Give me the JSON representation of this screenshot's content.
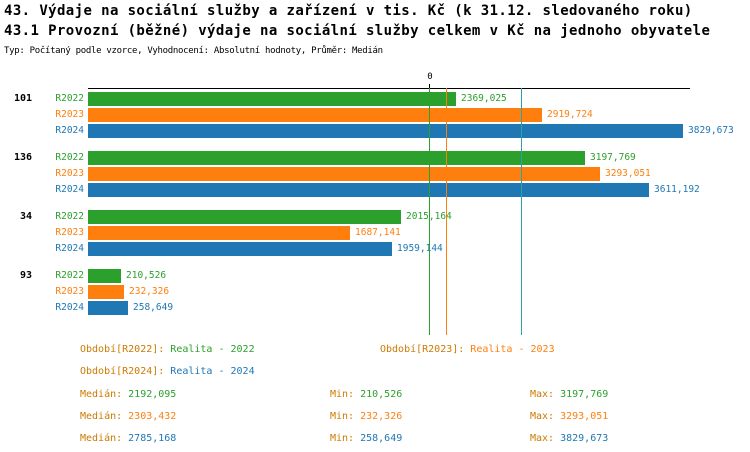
{
  "header": {
    "title1": "43. Výdaje na sociální služby a zařízení v tis. Kč (k 31.12. sledovaného roku)",
    "title2": "43.1 Provozní (běžné) výdaje na sociální služby celkem v Kč na jednoho obyvatele",
    "subtitle": "Typ: Počítaný podle vzorce, Vyhodnocení: Absolutní hodnoty, Průměr: Medián"
  },
  "chart_data": {
    "type": "bar",
    "orientation": "horizontal",
    "title": "43.1 Provozní (běžné) výdaje na sociální služby celkem v Kč na jednoho obyvatele",
    "axis": {
      "zero_label": "0",
      "x_min": 0,
      "x_max": 3875,
      "grid": false
    },
    "series": [
      {
        "name": "R2022",
        "label": "Realita - 2022",
        "color": "#2ca02c"
      },
      {
        "name": "R2023",
        "label": "Realita - 2023",
        "color": "#ff7f0e"
      },
      {
        "name": "R2024",
        "label": "Realita - 2024",
        "color": "#1f77b4"
      }
    ],
    "groups": [
      {
        "id": "101",
        "values": [
          2369.025,
          2919.724,
          3829.673
        ],
        "value_labels": [
          "2369,025",
          "2919,724",
          "3829,673"
        ]
      },
      {
        "id": "136",
        "values": [
          3197.769,
          3293.051,
          3611.192
        ],
        "value_labels": [
          "3197,769",
          "3293,051",
          "3611,192"
        ]
      },
      {
        "id": "34",
        "values": [
          2015.164,
          1687.141,
          1959.144
        ],
        "value_labels": [
          "2015,164",
          "1687,141",
          "1959,144"
        ]
      },
      {
        "id": "93",
        "values": [
          210.526,
          232.326,
          258.649
        ],
        "value_labels": [
          "210,526",
          "232,326",
          "258,649"
        ]
      }
    ],
    "median_lines": [
      {
        "series": "R2022",
        "value": 2192.095,
        "color": "#2ca02c"
      },
      {
        "series": "R2023",
        "value": 2303.432,
        "color": "#ff7f0e"
      },
      {
        "series": "R2024",
        "value": 2785.168,
        "color": "#2fa0a8"
      }
    ]
  },
  "legend": {
    "label_color": "#cc7a00",
    "items": [
      {
        "label": "Období[R2022]:",
        "value": "Realita - 2022",
        "color": "#2ca02c"
      },
      {
        "label": "Období[R2023]:",
        "value": "Realita - 2023",
        "color": "#ff7f0e"
      },
      {
        "label": "Období[R2024]:",
        "value": "Realita - 2024",
        "color": "#1f77b4"
      }
    ]
  },
  "stats": {
    "label_color": "#cc7a00",
    "rows": [
      {
        "median_label": "Medián:",
        "median": "2192,095",
        "min_label": "Min:",
        "min": "210,526",
        "max_label": "Max:",
        "max": "3197,769",
        "color": "#2ca02c"
      },
      {
        "median_label": "Medián:",
        "median": "2303,432",
        "min_label": "Min:",
        "min": "232,326",
        "max_label": "Max:",
        "max": "3293,051",
        "color": "#ff7f0e"
      },
      {
        "median_label": "Medián:",
        "median": "2785,168",
        "min_label": "Min:",
        "min": "258,649",
        "max_label": "Max:",
        "max": "3829,673",
        "color": "#1f77b4"
      }
    ]
  }
}
